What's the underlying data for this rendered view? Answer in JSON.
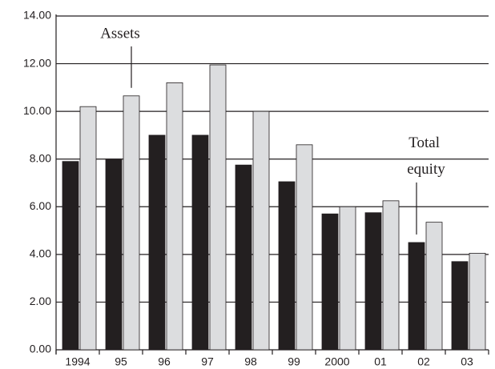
{
  "chart_data": {
    "type": "bar",
    "categories": [
      "1994",
      "95",
      "96",
      "97",
      "98",
      "99",
      "2000",
      "01",
      "02",
      "03"
    ],
    "series": [
      {
        "name": "Total equity",
        "color": "#231f20",
        "values": [
          7.9,
          8.0,
          9.0,
          9.0,
          7.75,
          7.05,
          5.7,
          5.75,
          4.5,
          3.7
        ]
      },
      {
        "name": "Assets",
        "color": "#dcdddf",
        "values": [
          10.2,
          10.65,
          11.2,
          11.95,
          10.0,
          8.6,
          6.0,
          6.25,
          5.35,
          4.05
        ]
      }
    ],
    "ylim": [
      0,
      14
    ],
    "yticks": [
      {
        "value": 0,
        "label": "0.00"
      },
      {
        "value": 2,
        "label": "2.00"
      },
      {
        "value": 4,
        "label": "4.00"
      },
      {
        "value": 6,
        "label": "6.00"
      },
      {
        "value": 8,
        "label": "8.00"
      },
      {
        "value": 10,
        "label": "10.00"
      },
      {
        "value": 12,
        "label": "12.00"
      },
      {
        "value": 14,
        "label": "14.00"
      }
    ],
    "grid": true
  }
}
